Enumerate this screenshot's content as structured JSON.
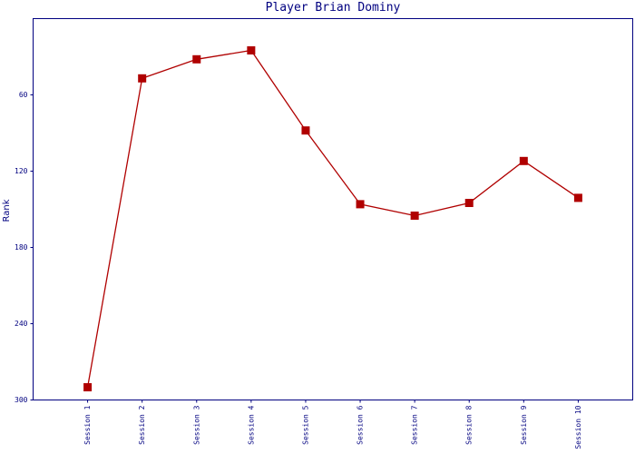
{
  "chart_data": {
    "type": "line",
    "title": "Player Brian Dominy",
    "y_label": "Rank",
    "categories": [
      "Session 1",
      "Session 2",
      "Session 3",
      "Session 4",
      "Session 5",
      "Session 6",
      "Session 7",
      "Session 8",
      "Session 9",
      "Session 10"
    ],
    "series": [
      {
        "name": "Rank",
        "color": "#b00000",
        "values": [
          290,
          47,
          32,
          25,
          88,
          146,
          155,
          145,
          112,
          141
        ]
      }
    ],
    "ylim": [
      0,
      300
    ],
    "y_inverted": true,
    "yticks": [
      60,
      120,
      180,
      240,
      300
    ]
  }
}
